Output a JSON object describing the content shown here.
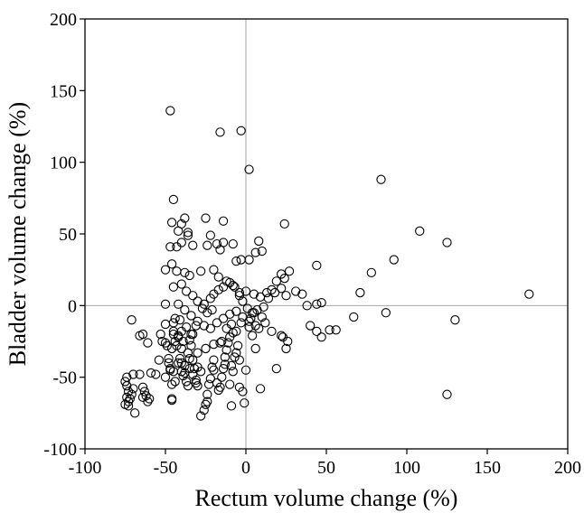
{
  "chart_data": {
    "type": "scatter",
    "xlabel": "Rectum volume change (%)",
    "ylabel": "Bladder volume change (%)",
    "xlim": [
      -100,
      200
    ],
    "ylim": [
      -100,
      200
    ],
    "x_ticks": [
      "-100",
      "-50",
      "0",
      "50",
      "100",
      "150",
      "200"
    ],
    "y_ticks": [
      "-100",
      "-50",
      "0",
      "50",
      "100",
      "150",
      "200"
    ],
    "grid": false,
    "reference_lines": {
      "x": 0,
      "y": 0
    },
    "marker": "open-circle",
    "points": [
      [
        -74,
        -50
      ],
      [
        -75,
        -53
      ],
      [
        -74,
        -56
      ],
      [
        -73,
        -60
      ],
      [
        -74,
        -64
      ],
      [
        -73,
        -67
      ],
      [
        -75,
        -69
      ],
      [
        -73,
        -70
      ],
      [
        -72,
        -65
      ],
      [
        -71,
        -62
      ],
      [
        -70,
        -58
      ],
      [
        -70,
        -48
      ],
      [
        -69,
        -75
      ],
      [
        -71,
        -10
      ],
      [
        -66,
        -21
      ],
      [
        -64,
        -20
      ],
      [
        -66,
        -48
      ],
      [
        -64,
        -57
      ],
      [
        -63,
        -60
      ],
      [
        -62,
        -63
      ],
      [
        -64,
        -64
      ],
      [
        -61,
        -67
      ],
      [
        -60,
        -65
      ],
      [
        -59,
        -47
      ],
      [
        -61,
        -26
      ],
      [
        -56,
        -48
      ],
      [
        -54,
        -38
      ],
      [
        -52,
        -25
      ],
      [
        -53,
        -20
      ],
      [
        -50,
        -50
      ],
      [
        -50,
        -13
      ],
      [
        -50,
        1
      ],
      [
        -49,
        -28
      ],
      [
        -48,
        -37
      ],
      [
        -48,
        -40
      ],
      [
        -47,
        -44
      ],
      [
        -46,
        -55
      ],
      [
        -46,
        -65
      ],
      [
        -46,
        -66
      ],
      [
        -44,
        -53
      ],
      [
        -47,
        -45
      ],
      [
        -46,
        -30
      ],
      [
        -45,
        -18
      ],
      [
        -44,
        -25
      ],
      [
        -45,
        -20
      ],
      [
        -45,
        -12
      ],
      [
        -44,
        -9
      ],
      [
        -43,
        -28
      ],
      [
        -42,
        -40
      ],
      [
        -42,
        -22
      ],
      [
        -40,
        -46
      ],
      [
        -41,
        -37
      ],
      [
        -40,
        -18
      ],
      [
        -40,
        -30
      ],
      [
        -39,
        -25
      ],
      [
        -38,
        -42
      ],
      [
        -38,
        -47
      ],
      [
        -37,
        -53
      ],
      [
        -36,
        -56
      ],
      [
        -35,
        -44
      ],
      [
        -36,
        -33
      ],
      [
        -34,
        -28
      ],
      [
        -34,
        -20
      ],
      [
        -33,
        -38
      ],
      [
        -33,
        -48
      ],
      [
        -32,
        -44
      ],
      [
        -31,
        -52
      ],
      [
        -31,
        -54
      ],
      [
        -30,
        -56
      ],
      [
        -30,
        -43
      ],
      [
        -28,
        -77
      ],
      [
        -26,
        -73
      ],
      [
        -25,
        -69
      ],
      [
        -24,
        -67
      ],
      [
        -24,
        -62
      ],
      [
        -23,
        -55
      ],
      [
        -22,
        -51
      ],
      [
        -21,
        -43
      ],
      [
        -20,
        -38
      ],
      [
        -20,
        -45
      ],
      [
        -18,
        -54
      ],
      [
        -17,
        -59
      ],
      [
        -16,
        -57
      ],
      [
        -15,
        -50
      ],
      [
        -14,
        -44
      ],
      [
        -13,
        -41
      ],
      [
        -13,
        -36
      ],
      [
        -12,
        -31
      ],
      [
        -11,
        -26
      ],
      [
        -10,
        -55
      ],
      [
        -9,
        -70
      ],
      [
        -9,
        -42
      ],
      [
        -8,
        -46
      ],
      [
        -7,
        -36
      ],
      [
        -6,
        -33
      ],
      [
        -5,
        -28
      ],
      [
        -4,
        -38
      ],
      [
        -4,
        -57
      ],
      [
        -2,
        -60
      ],
      [
        -1,
        -68
      ],
      [
        0,
        -45
      ],
      [
        2,
        -15
      ],
      [
        3,
        -9
      ],
      [
        4,
        -21
      ],
      [
        6,
        -30
      ],
      [
        8,
        -16
      ],
      [
        9,
        -58
      ],
      [
        10,
        -8
      ],
      [
        12,
        -12
      ],
      [
        16,
        -18
      ],
      [
        19,
        -44
      ],
      [
        22,
        -21
      ],
      [
        23,
        -22
      ],
      [
        25,
        -30
      ],
      [
        26,
        -25
      ],
      [
        -47,
        136
      ],
      [
        -16,
        121
      ],
      [
        -3,
        122
      ],
      [
        2,
        95
      ],
      [
        -45,
        74
      ],
      [
        -38,
        61
      ],
      [
        -40,
        57
      ],
      [
        -46,
        58
      ],
      [
        -25,
        61
      ],
      [
        -14,
        59
      ],
      [
        -42,
        52
      ],
      [
        -36,
        49
      ],
      [
        -36,
        51
      ],
      [
        -43,
        41
      ],
      [
        -47,
        41
      ],
      [
        -40,
        44
      ],
      [
        -33,
        42
      ],
      [
        -22,
        49
      ],
      [
        -18,
        43
      ],
      [
        -24,
        42
      ],
      [
        -14,
        44
      ],
      [
        -16,
        39
      ],
      [
        -8,
        43
      ],
      [
        -6,
        31
      ],
      [
        -3,
        32
      ],
      [
        2,
        32
      ],
      [
        6,
        37
      ],
      [
        8,
        45
      ],
      [
        10,
        38
      ],
      [
        -46,
        29
      ],
      [
        -50,
        25
      ],
      [
        -43,
        24
      ],
      [
        -38,
        23
      ],
      [
        -35,
        21
      ],
      [
        -28,
        24
      ],
      [
        -20,
        25
      ],
      [
        -17,
        20
      ],
      [
        -12,
        17
      ],
      [
        -8,
        14
      ],
      [
        -4,
        9
      ],
      [
        0,
        10
      ],
      [
        5,
        8
      ],
      [
        9,
        6
      ],
      [
        13,
        9
      ],
      [
        16,
        11
      ],
      [
        19,
        17
      ],
      [
        22,
        22
      ],
      [
        24,
        19
      ],
      [
        27,
        24
      ],
      [
        -45,
        13
      ],
      [
        -40,
        15
      ],
      [
        -37,
        10
      ],
      [
        -33,
        7
      ],
      [
        -30,
        3
      ],
      [
        -26,
        1
      ],
      [
        -22,
        5
      ],
      [
        -20,
        8
      ],
      [
        -17,
        11
      ],
      [
        -14,
        13
      ],
      [
        -10,
        16
      ],
      [
        -7,
        13
      ],
      [
        -4,
        7
      ],
      [
        -2,
        3
      ],
      [
        1,
        -2
      ],
      [
        4,
        -5
      ],
      [
        7,
        -3
      ],
      [
        11,
        -1
      ],
      [
        14,
        5
      ],
      [
        18,
        9
      ],
      [
        22,
        12
      ],
      [
        25,
        7
      ],
      [
        -42,
        1
      ],
      [
        -38,
        -3
      ],
      [
        -34,
        -7
      ],
      [
        -30,
        -11
      ],
      [
        -26,
        -14
      ],
      [
        -22,
        -16
      ],
      [
        -18,
        -12
      ],
      [
        -14,
        -9
      ],
      [
        -10,
        -6
      ],
      [
        -6,
        -4
      ],
      [
        -2,
        -8
      ],
      [
        2,
        -11
      ],
      [
        6,
        -14
      ],
      [
        -45,
        -46
      ],
      [
        -40,
        -40
      ],
      [
        -35,
        -37
      ],
      [
        -30,
        -33
      ],
      [
        -25,
        -30
      ],
      [
        -20,
        -27
      ],
      [
        -15,
        -25
      ],
      [
        -10,
        -22
      ],
      [
        -8,
        -19
      ],
      [
        -6,
        -18
      ],
      [
        -3,
        -12
      ],
      [
        -27,
        -2
      ],
      [
        -24,
        -5
      ],
      [
        -21,
        -3
      ],
      [
        -12,
        -16
      ],
      [
        -9,
        -13
      ],
      [
        -16,
        -26
      ],
      [
        -28,
        -46
      ],
      [
        -33,
        -20
      ],
      [
        -37,
        -15
      ],
      [
        -41,
        -10
      ],
      [
        24,
        57
      ],
      [
        44,
        28
      ],
      [
        35,
        8
      ],
      [
        31,
        10
      ],
      [
        38,
        0
      ],
      [
        44,
        1
      ],
      [
        47,
        2
      ],
      [
        40,
        -14
      ],
      [
        44,
        -18
      ],
      [
        47,
        -22
      ],
      [
        52,
        -17
      ],
      [
        56,
        -17
      ],
      [
        67,
        -8
      ],
      [
        71,
        9
      ],
      [
        78,
        23
      ],
      [
        84,
        88
      ],
      [
        87,
        -5
      ],
      [
        92,
        32
      ],
      [
        108,
        52
      ],
      [
        125,
        44
      ],
      [
        125,
        -62
      ],
      [
        130,
        -10
      ],
      [
        176,
        8
      ],
      [
        5,
        -5
      ],
      [
        -31,
        -14
      ],
      [
        -35,
        -24
      ],
      [
        -39,
        -49
      ],
      [
        -42,
        -21
      ],
      [
        -50,
        -26
      ]
    ]
  }
}
